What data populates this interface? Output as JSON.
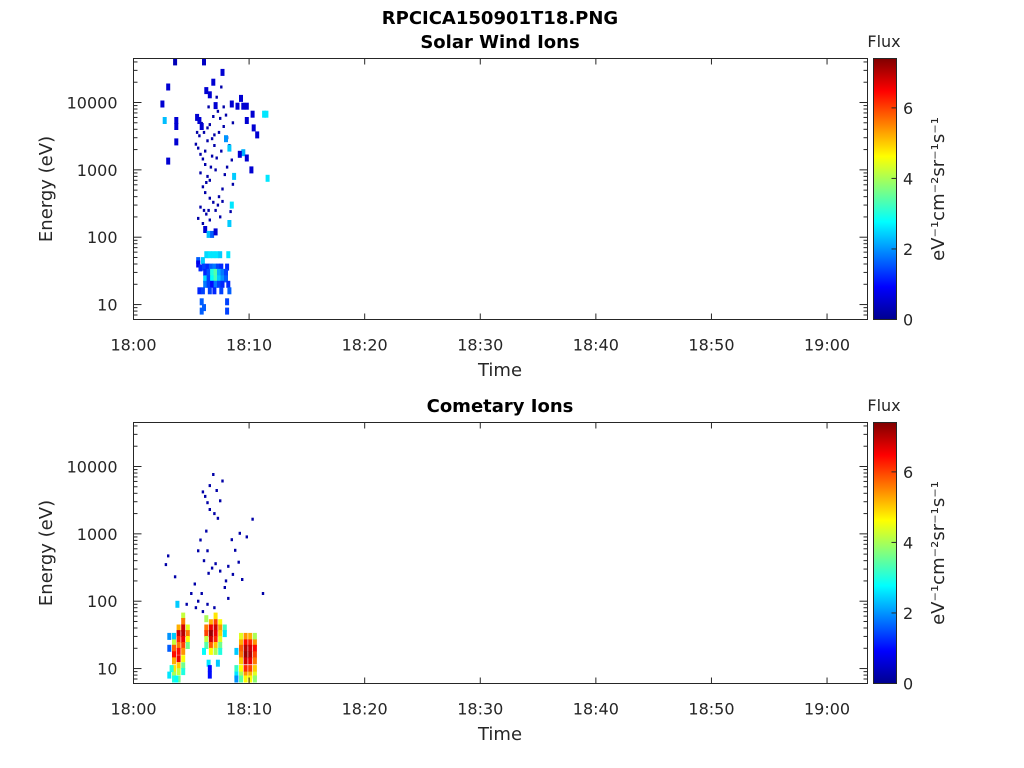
{
  "figure_title": "RPCICA150901T18.PNG",
  "colorbar_label": "Flux",
  "colorbar_units": "eV⁻¹cm⁻²sr⁻¹s⁻¹",
  "colorbar_ticks": [
    "0",
    "2",
    "4",
    "6"
  ],
  "colorbar_range": [
    0,
    7.4
  ],
  "chart_data": [
    {
      "type": "heatmap",
      "title": "Solar Wind Ions",
      "xlabel": "Time",
      "ylabel": "Energy (eV)",
      "x_ticks": [
        "18:00",
        "18:10",
        "18:20",
        "18:30",
        "18:40",
        "18:50",
        "19:00"
      ],
      "y_ticks": [
        "10",
        "100",
        "1000",
        "10000"
      ],
      "y_scale": "log",
      "xlim_minutes_after_1800": [
        0,
        63.5
      ],
      "ylim": [
        6,
        45000
      ],
      "z_label": "Flux",
      "zlim": [
        0,
        7.4
      ],
      "points": [
        [
          2.5,
          9500,
          0.6
        ],
        [
          2.7,
          5400,
          2.3
        ],
        [
          3.0,
          17000,
          0.6
        ],
        [
          3.0,
          1350,
          0.6
        ],
        [
          3.6,
          40000,
          0.4
        ],
        [
          3.7,
          5400,
          0.6
        ],
        [
          3.7,
          4400,
          0.6
        ],
        [
          3.7,
          2600,
          0.6
        ],
        [
          5.5,
          6000,
          0.6
        ],
        [
          5.7,
          5400,
          0.6
        ],
        [
          5.9,
          4400,
          0.6
        ],
        [
          6.1,
          40000,
          0.5
        ],
        [
          6.3,
          15000,
          0.6
        ],
        [
          6.6,
          13000,
          0.6
        ],
        [
          6.9,
          20000,
          0.6
        ],
        [
          7.1,
          9000,
          0.6
        ],
        [
          7.7,
          28000,
          0.6
        ],
        [
          8.5,
          9500,
          0.6
        ],
        [
          9.0,
          8800,
          0.6
        ],
        [
          9.5,
          8800,
          0.6
        ],
        [
          9.8,
          8800,
          0.6
        ],
        [
          9.3,
          11500,
          0.6
        ],
        [
          9.8,
          5400,
          0.6
        ],
        [
          10.4,
          4200,
          0.6
        ],
        [
          10.7,
          3300,
          0.6
        ],
        [
          10.3,
          6700,
          0.6
        ],
        [
          11.3,
          6700,
          2.6
        ],
        [
          11.5,
          6700,
          2.6
        ],
        [
          11.6,
          750,
          2.6
        ],
        [
          8.0,
          2900,
          2.0
        ],
        [
          8.3,
          2100,
          2.4
        ],
        [
          9.5,
          1800,
          2.2
        ],
        [
          9.2,
          1700,
          0.6
        ],
        [
          9.8,
          1500,
          0.6
        ],
        [
          10.2,
          1000,
          0.6
        ],
        [
          8.7,
          800,
          2.4
        ],
        [
          8.5,
          300,
          2.6
        ],
        [
          8.3,
          160,
          2.4
        ],
        [
          6.2,
          130,
          0.6
        ],
        [
          6.5,
          110,
          2.3
        ],
        [
          6.8,
          110,
          1.6
        ],
        [
          7.1,
          120,
          0.6
        ],
        [
          5.6,
          45,
          1.6
        ],
        [
          5.6,
          40,
          0.8
        ],
        [
          6.0,
          45,
          2.4
        ],
        [
          6.3,
          55,
          2.5
        ],
        [
          6.6,
          55,
          2.6
        ],
        [
          6.9,
          55,
          2.6
        ],
        [
          7.2,
          55,
          2.6
        ],
        [
          7.5,
          55,
          2.4
        ],
        [
          8.2,
          55,
          2.6
        ],
        [
          5.8,
          35,
          1.2
        ],
        [
          6.1,
          36,
          1.4
        ],
        [
          6.4,
          36,
          1.2
        ],
        [
          6.7,
          36,
          1.6
        ],
        [
          7.0,
          36,
          1.8
        ],
        [
          7.3,
          36,
          1.4
        ],
        [
          7.6,
          36,
          1.2
        ],
        [
          8.1,
          36,
          1.2
        ],
        [
          6.2,
          30,
          1.2
        ],
        [
          6.5,
          30,
          1.5
        ],
        [
          6.8,
          30,
          3.0
        ],
        [
          7.1,
          30,
          3.4
        ],
        [
          7.4,
          30,
          2.2
        ],
        [
          7.7,
          30,
          1.8
        ],
        [
          8.0,
          30,
          1.4
        ],
        [
          6.2,
          24,
          2.5
        ],
        [
          6.5,
          24,
          1.4
        ],
        [
          6.8,
          24,
          2.8
        ],
        [
          7.1,
          24,
          3.3
        ],
        [
          7.4,
          24,
          2.4
        ],
        [
          7.7,
          24,
          2.0
        ],
        [
          8.0,
          24,
          1.6
        ],
        [
          6.2,
          20,
          1.8
        ],
        [
          6.5,
          20,
          1.4
        ],
        [
          6.8,
          20,
          1.0
        ],
        [
          7.1,
          20,
          1.8
        ],
        [
          7.4,
          20,
          1.4
        ],
        [
          7.7,
          20,
          1.2
        ],
        [
          8.2,
          20,
          1.2
        ],
        [
          5.7,
          16,
          1.2
        ],
        [
          6.0,
          16,
          1.4
        ],
        [
          6.6,
          16,
          1.4
        ],
        [
          7.0,
          16,
          1.2
        ],
        [
          7.6,
          16,
          1.4
        ],
        [
          8.3,
          16,
          1.6
        ],
        [
          5.9,
          11,
          1.6
        ],
        [
          5.9,
          8,
          1.6
        ],
        [
          6.1,
          9,
          1.6
        ],
        [
          8.1,
          11,
          1.4
        ],
        [
          8.1,
          8,
          1.4
        ]
      ],
      "sparse_low_flux": [
        [
          5.4,
          2400
        ],
        [
          5.6,
          2100
        ],
        [
          5.8,
          1700
        ],
        [
          6.0,
          1450
        ],
        [
          6.2,
          1200
        ],
        [
          5.8,
          900
        ],
        [
          6.4,
          800
        ],
        [
          6.6,
          700
        ],
        [
          6.0,
          560
        ],
        [
          6.2,
          460
        ],
        [
          6.6,
          380
        ],
        [
          6.9,
          330
        ],
        [
          7.3,
          300
        ],
        [
          6.1,
          250
        ],
        [
          6.5,
          250
        ],
        [
          7.1,
          250
        ],
        [
          7.5,
          200
        ],
        [
          6.6,
          180
        ],
        [
          6.0,
          160
        ],
        [
          7.6,
          1900
        ],
        [
          7.2,
          1500
        ],
        [
          6.8,
          2900
        ],
        [
          7.0,
          3300
        ],
        [
          7.4,
          3600
        ],
        [
          7.8,
          4400
        ],
        [
          6.6,
          4700
        ],
        [
          6.9,
          6200
        ],
        [
          7.3,
          7400
        ],
        [
          5.7,
          3200
        ],
        [
          6.1,
          3600
        ],
        [
          6.4,
          4200
        ],
        [
          8.1,
          3000
        ],
        [
          8.3,
          2300
        ],
        [
          8.5,
          1400
        ],
        [
          8.1,
          1100
        ],
        [
          7.9,
          850
        ],
        [
          8.6,
          610
        ],
        [
          7.7,
          520
        ],
        [
          7.4,
          400
        ],
        [
          5.8,
          280
        ],
        [
          6.3,
          220
        ],
        [
          5.6,
          190
        ],
        [
          8.4,
          240
        ],
        [
          7.1,
          1000
        ],
        [
          6.7,
          1100
        ],
        [
          6.2,
          1900
        ],
        [
          6.4,
          2700
        ],
        [
          5.9,
          4900
        ],
        [
          7.5,
          5800
        ],
        [
          7.2,
          12000
        ],
        [
          6.5,
          8600
        ],
        [
          7.8,
          8600
        ],
        [
          7.6,
          17000
        ],
        [
          8.0,
          6500
        ],
        [
          8.6,
          5000
        ],
        [
          5.5,
          3600
        ],
        [
          7.0,
          2300
        ],
        [
          6.8,
          1600
        ],
        [
          6.3,
          650
        ],
        [
          7.7,
          340
        ]
      ]
    },
    {
      "type": "heatmap",
      "title": "Cometary Ions",
      "xlabel": "Time",
      "ylabel": "Energy (eV)",
      "x_ticks": [
        "18:00",
        "18:10",
        "18:20",
        "18:30",
        "18:40",
        "18:50",
        "19:00"
      ],
      "y_ticks": [
        "10",
        "100",
        "1000",
        "10000"
      ],
      "y_scale": "log",
      "xlim_minutes_after_1800": [
        0,
        63.5
      ],
      "ylim": [
        6,
        45000
      ],
      "z_label": "Flux",
      "zlim": [
        0,
        7.4
      ],
      "points": [
        [
          3.5,
          30,
          2.4
        ],
        [
          3.5,
          24,
          4.2
        ],
        [
          3.5,
          20,
          5.8
        ],
        [
          3.5,
          16,
          6.4
        ],
        [
          3.5,
          13,
          5.2
        ],
        [
          3.5,
          10,
          4.8
        ],
        [
          3.5,
          8,
          4.0
        ],
        [
          3.5,
          7,
          3.0
        ],
        [
          3.9,
          40,
          5.2
        ],
        [
          3.9,
          33,
          6.8
        ],
        [
          3.9,
          27,
          6.2
        ],
        [
          3.9,
          22,
          5.6
        ],
        [
          3.9,
          18,
          6.4
        ],
        [
          3.9,
          14,
          6.6
        ],
        [
          3.9,
          11,
          5.0
        ],
        [
          3.9,
          9,
          4.2
        ],
        [
          3.9,
          7,
          3.6
        ],
        [
          4.3,
          60,
          4.2
        ],
        [
          4.3,
          50,
          5.6
        ],
        [
          4.3,
          40,
          6.8
        ],
        [
          4.3,
          33,
          7.0
        ],
        [
          4.3,
          27,
          6.6
        ],
        [
          4.3,
          22,
          6.0
        ],
        [
          4.3,
          18,
          5.4
        ],
        [
          4.3,
          14,
          4.6
        ],
        [
          4.3,
          11,
          3.6
        ],
        [
          4.3,
          9,
          3.0
        ],
        [
          4.7,
          40,
          4.4
        ],
        [
          4.7,
          33,
          5.6
        ],
        [
          4.7,
          27,
          4.6
        ],
        [
          4.7,
          22,
          3.6
        ],
        [
          3.1,
          30,
          2.0
        ],
        [
          3.1,
          20,
          1.6
        ],
        [
          3.8,
          90,
          2.4
        ],
        [
          3.3,
          10,
          3.0
        ],
        [
          3.1,
          8,
          2.6
        ],
        [
          3.7,
          7,
          2.8
        ],
        [
          6.3,
          55,
          4.0
        ],
        [
          6.3,
          40,
          5.6
        ],
        [
          6.3,
          33,
          6.0
        ],
        [
          6.3,
          27,
          4.2
        ],
        [
          6.3,
          22,
          3.4
        ],
        [
          6.7,
          48,
          5.2
        ],
        [
          6.7,
          40,
          6.6
        ],
        [
          6.7,
          33,
          7.2
        ],
        [
          6.7,
          27,
          6.8
        ],
        [
          6.7,
          22,
          5.8
        ],
        [
          6.7,
          18,
          4.6
        ],
        [
          7.1,
          60,
          4.8
        ],
        [
          7.1,
          48,
          6.0
        ],
        [
          7.1,
          40,
          6.8
        ],
        [
          7.1,
          33,
          6.6
        ],
        [
          7.1,
          27,
          6.2
        ],
        [
          7.1,
          22,
          5.0
        ],
        [
          7.1,
          18,
          4.0
        ],
        [
          7.5,
          48,
          4.6
        ],
        [
          7.5,
          40,
          5.4
        ],
        [
          7.5,
          33,
          5.0
        ],
        [
          7.5,
          27,
          4.4
        ],
        [
          7.5,
          22,
          3.6
        ],
        [
          7.5,
          18,
          3.0
        ],
        [
          6.1,
          18,
          2.8
        ],
        [
          6.5,
          12,
          2.6
        ],
        [
          7.3,
          12,
          2.4
        ],
        [
          7.9,
          40,
          3.2
        ],
        [
          7.9,
          33,
          2.6
        ],
        [
          6.6,
          10,
          1.0
        ],
        [
          6.6,
          8,
          1.0
        ],
        [
          9.3,
          30,
          4.4
        ],
        [
          9.3,
          24,
          5.2
        ],
        [
          9.3,
          20,
          5.8
        ],
        [
          9.3,
          16,
          5.6
        ],
        [
          9.3,
          13,
          5.0
        ],
        [
          9.3,
          10,
          4.6
        ],
        [
          9.3,
          8,
          4.0
        ],
        [
          9.3,
          7,
          3.4
        ],
        [
          9.7,
          30,
          5.4
        ],
        [
          9.7,
          24,
          6.4
        ],
        [
          9.7,
          20,
          7.0
        ],
        [
          9.7,
          16,
          7.2
        ],
        [
          9.7,
          13,
          6.8
        ],
        [
          9.7,
          10,
          6.2
        ],
        [
          9.7,
          8,
          5.4
        ],
        [
          9.7,
          7,
          4.6
        ],
        [
          10.1,
          30,
          5.2
        ],
        [
          10.1,
          24,
          6.2
        ],
        [
          10.1,
          20,
          6.8
        ],
        [
          10.1,
          16,
          7.0
        ],
        [
          10.1,
          13,
          6.6
        ],
        [
          10.1,
          10,
          6.0
        ],
        [
          10.1,
          8,
          5.2
        ],
        [
          10.1,
          7,
          4.6
        ],
        [
          10.5,
          30,
          4.0
        ],
        [
          10.5,
          24,
          5.4
        ],
        [
          10.5,
          20,
          6.4
        ],
        [
          10.5,
          16,
          6.0
        ],
        [
          10.5,
          13,
          5.6
        ],
        [
          10.5,
          10,
          5.0
        ],
        [
          10.5,
          8,
          4.4
        ],
        [
          10.5,
          7,
          3.8
        ],
        [
          8.9,
          18,
          2.4
        ],
        [
          8.9,
          10,
          3.2
        ],
        [
          8.9,
          8,
          2.6
        ],
        [
          8.9,
          7,
          2.0
        ]
      ],
      "sparse_low_flux": [
        [
          2.8,
          350
        ],
        [
          3.0,
          470
        ],
        [
          3.6,
          230
        ],
        [
          5.3,
          180
        ],
        [
          5.6,
          100
        ],
        [
          5.9,
          130
        ],
        [
          6.1,
          400
        ],
        [
          6.5,
          260
        ],
        [
          6.8,
          310
        ],
        [
          7.1,
          360
        ],
        [
          7.5,
          280
        ],
        [
          7.9,
          160
        ],
        [
          8.2,
          110
        ],
        [
          5.8,
          810
        ],
        [
          6.4,
          2900
        ],
        [
          6.2,
          3600
        ],
        [
          6.6,
          5200
        ],
        [
          6.9,
          7600
        ],
        [
          7.2,
          4400
        ],
        [
          7.5,
          3100
        ],
        [
          7.7,
          6100
        ],
        [
          6.0,
          4200
        ],
        [
          6.6,
          2300
        ],
        [
          8.5,
          820
        ],
        [
          8.8,
          570
        ],
        [
          9.1,
          380
        ],
        [
          9.4,
          210
        ],
        [
          9.2,
          1020
        ],
        [
          10.3,
          1650
        ],
        [
          11.2,
          130
        ],
        [
          6.4,
          560
        ],
        [
          5.6,
          560
        ],
        [
          5.0,
          130
        ],
        [
          4.6,
          90
        ],
        [
          8.0,
          200
        ],
        [
          8.6,
          250
        ],
        [
          6.3,
          1100
        ],
        [
          7.0,
          2000
        ],
        [
          7.3,
          1700
        ],
        [
          5.4,
          80
        ],
        [
          6.0,
          70
        ],
        [
          6.4,
          90
        ],
        [
          7.0,
          80
        ],
        [
          9.8,
          900
        ],
        [
          8.2,
          330
        ]
      ]
    }
  ]
}
